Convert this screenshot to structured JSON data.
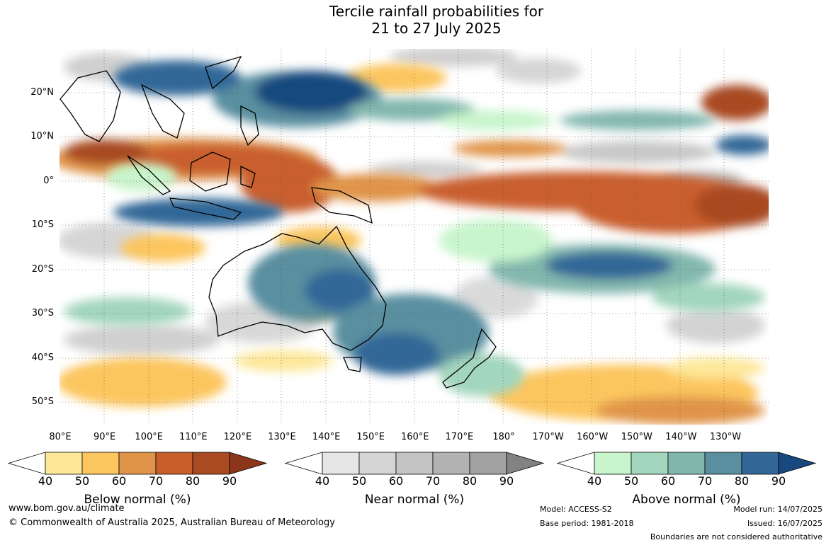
{
  "title_line1": "Tercile rainfall probabilities for",
  "title_line2": "21 to 27 July 2025",
  "lat_labels": [
    "20°N",
    "10°N",
    "0°",
    "10°S",
    "20°S",
    "30°S",
    "40°S",
    "50°S"
  ],
  "lon_labels": [
    "80°E",
    "90°E",
    "100°E",
    "110°E",
    "120°E",
    "130°E",
    "140°E",
    "150°E",
    "160°E",
    "170°E",
    "180°",
    "170°W",
    "160°W",
    "150°W",
    "140°W",
    "130°W"
  ],
  "legends": [
    {
      "title": "Below normal (%)",
      "ticks": [
        "40",
        "50",
        "60",
        "70",
        "80",
        "90"
      ],
      "colors": [
        "#ffffff",
        "#fde89a",
        "#fcc65f",
        "#e0944a",
        "#c95e2d",
        "#a94a22",
        "#8b361a"
      ]
    },
    {
      "title": "Near normal (%)",
      "ticks": [
        "40",
        "50",
        "60",
        "70",
        "80",
        "90"
      ],
      "colors": [
        "#ffffff",
        "#e6e6e6",
        "#d5d5d5",
        "#c4c4c4",
        "#b3b3b3",
        "#a2a2a2",
        "#828282"
      ]
    },
    {
      "title": "Above normal (%)",
      "ticks": [
        "40",
        "50",
        "60",
        "70",
        "80",
        "90"
      ],
      "colors": [
        "#ffffff",
        "#c8f5cc",
        "#a2d6bd",
        "#82b7ad",
        "#5a8fa0",
        "#336797",
        "#17497e"
      ]
    }
  ],
  "footer": {
    "website": "www.bom.gov.au/climate",
    "copyright": "© Commonwealth of Australia 2025, Australian Bureau of Meteorology",
    "model": "Model: ACCESS-S2",
    "base_period": "Base period: 1981-2018",
    "model_run": "Model run: 14/07/2025",
    "issued": "Issued: 16/07/2025",
    "disclaimer": "Boundaries are not considered authoritative"
  }
}
